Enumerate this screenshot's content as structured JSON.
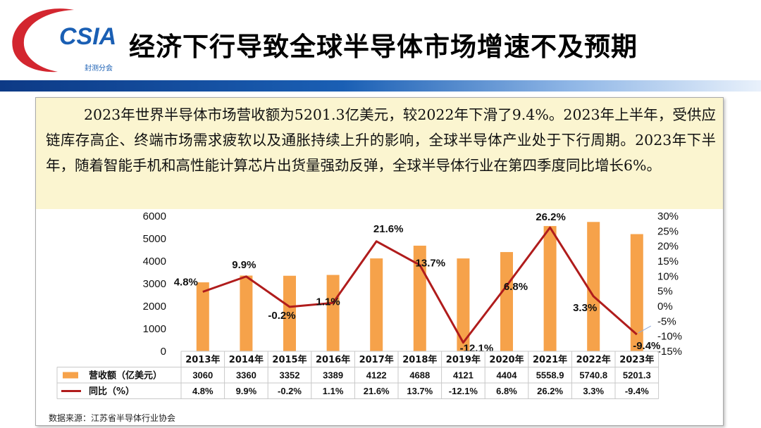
{
  "header": {
    "logo_text": "CSIA",
    "logo_subtext": "封测分会",
    "title": "经济下行导致全球半导体市场增速不及预期"
  },
  "summary": {
    "paragraph": "2023年世界半导体市场营收额为5201.3亿美元，较2022年下滑了9.4%。2023年上半年，受供应链库存高企、终端市场需求疲软以及通胀持续上升的影响，全球半导体产业处于下行周期。2023年下半年，随着智能手机和高性能计算芯片出货量强劲反弹，全球半导体行业在第四季度同比增长6%。"
  },
  "colors": {
    "bar": "#f6a24a",
    "line": "#b01c1c",
    "accent_red": "#d3262f",
    "header_blue": "#1a5fb4"
  },
  "chart_data": {
    "type": "bar",
    "categories": [
      "2013年",
      "2014年",
      "2015年",
      "2016年",
      "2017年",
      "2018年",
      "2019年",
      "2020年",
      "2021年",
      "2022年",
      "2023年"
    ],
    "series": [
      {
        "name": "营收额（亿美元）",
        "type": "bar",
        "axis": "left",
        "values": [
          3060,
          3360,
          3352,
          3389,
          4122,
          4688,
          4121,
          4404,
          5558.9,
          5740.8,
          5201.3
        ]
      },
      {
        "name": "同比（%）",
        "type": "line",
        "axis": "right",
        "values": [
          4.8,
          9.9,
          -0.2,
          1.1,
          21.6,
          13.7,
          -12.1,
          6.8,
          26.2,
          3.3,
          -9.4
        ]
      }
    ],
    "left_axis": {
      "ticks": [
        "0",
        "1000",
        "2000",
        "3000",
        "4000",
        "5000",
        "6000"
      ],
      "ylim": [
        0,
        6000
      ]
    },
    "right_axis": {
      "ticks": [
        "-15%",
        "-10%",
        "-5%",
        "0%",
        "5%",
        "10%",
        "15%",
        "20%",
        "25%",
        "30%"
      ],
      "ylim": [
        -15,
        30
      ]
    },
    "line_labels": [
      "4.8%",
      "9.9%",
      "-0.2%",
      "1.1%",
      "21.6%",
      "13.7%",
      "-12.1%",
      "6.8%",
      "26.2%",
      "3.3%",
      "-9.4%"
    ],
    "table": {
      "rows": [
        {
          "legend": "营收额（亿美元）",
          "cells": [
            "3060",
            "3360",
            "3352",
            "3389",
            "4122",
            "4688",
            "4121",
            "4404",
            "5558.9",
            "5740.8",
            "5201.3"
          ]
        },
        {
          "legend": "同比（%）",
          "cells": [
            "4.8%",
            "9.9%",
            "-0.2%",
            "1.1%",
            "21.6%",
            "13.7%",
            "-12.1%",
            "6.8%",
            "26.2%",
            "3.3%",
            "-9.4%"
          ]
        }
      ]
    },
    "grid": false,
    "legend_position": "table-left"
  },
  "footer": {
    "source": "数据来源：江苏省半导体行业协会"
  }
}
